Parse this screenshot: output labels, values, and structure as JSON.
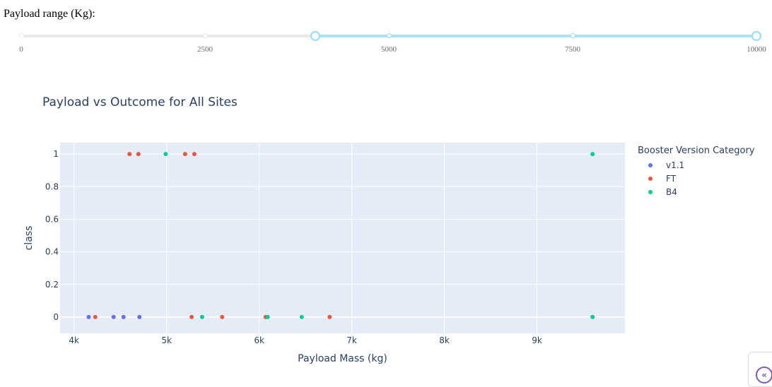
{
  "slider": {
    "label": "Payload range (Kg):",
    "min": 0,
    "max": 10000,
    "value_low": 4000,
    "value_high": 10000,
    "marks": [
      "0",
      "2500",
      "5000",
      "7500",
      "10000"
    ]
  },
  "chart_data": {
    "type": "scatter",
    "title": "Payload vs Outcome for All Sites",
    "xlabel": "Payload Mass (kg)",
    "ylabel": "class",
    "xlim": [
      3850,
      9950
    ],
    "ylim": [
      -0.1,
      1.07
    ],
    "x_ticks": [
      4000,
      5000,
      6000,
      7000,
      8000,
      9000
    ],
    "x_tick_labels": [
      "4k",
      "5k",
      "6k",
      "7k",
      "8k",
      "9k"
    ],
    "y_ticks": [
      0,
      0.2,
      0.4,
      0.6,
      0.8,
      1
    ],
    "y_tick_labels": [
      "0",
      "0.2",
      "0.4",
      "0.6",
      "0.8",
      "1"
    ],
    "grid": true,
    "legend_title": "Booster Version Category",
    "legend_position": "right",
    "series": [
      {
        "name": "v1.1",
        "color": "#636efa",
        "points": [
          [
            4159,
            0
          ],
          [
            4428,
            0
          ],
          [
            4535,
            0
          ],
          [
            4707,
            0
          ]
        ]
      },
      {
        "name": "FT",
        "color": "#ef553b",
        "points": [
          [
            4230,
            0
          ],
          [
            4600,
            1
          ],
          [
            4696,
            1
          ],
          [
            5200,
            1
          ],
          [
            5300,
            1
          ],
          [
            5271,
            0
          ],
          [
            5600,
            0
          ],
          [
            6070,
            0
          ],
          [
            6761,
            0
          ]
        ]
      },
      {
        "name": "B4",
        "color": "#00cc96",
        "points": [
          [
            4990,
            1
          ],
          [
            5384,
            0
          ],
          [
            6092,
            0
          ],
          [
            6460,
            0
          ],
          [
            9600,
            1
          ],
          [
            9600,
            0
          ]
        ]
      }
    ]
  }
}
